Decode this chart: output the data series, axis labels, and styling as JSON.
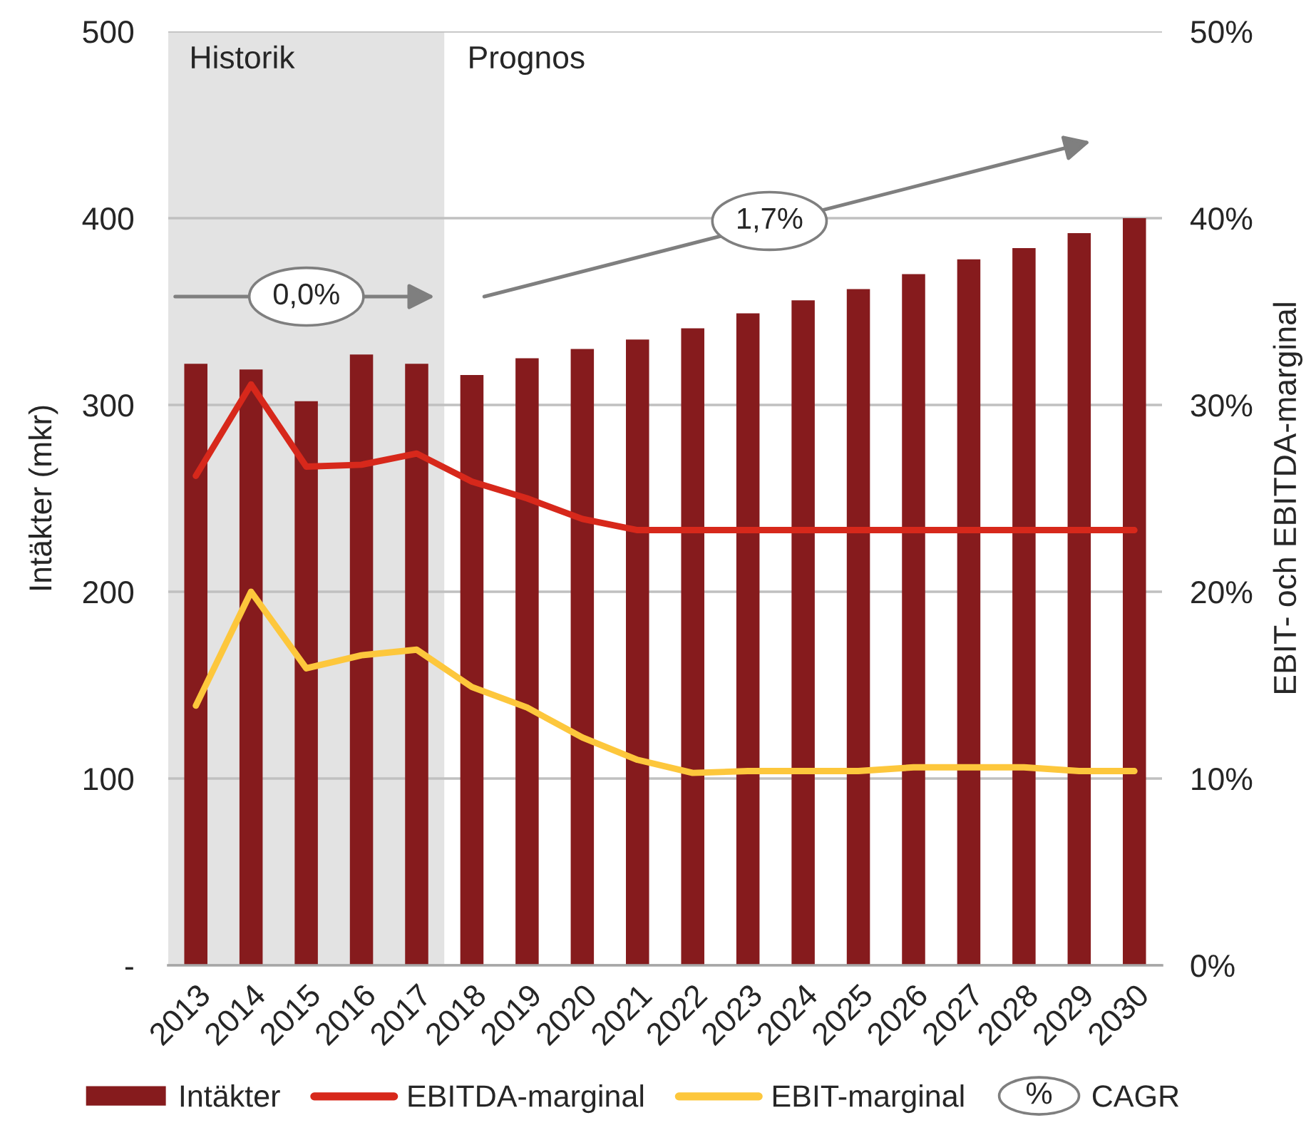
{
  "chart_data": {
    "type": "bar",
    "categories": [
      "2013",
      "2014",
      "2015",
      "2016",
      "2017",
      "2018",
      "2019",
      "2020",
      "2021",
      "2022",
      "2023",
      "2024",
      "2025",
      "2026",
      "2027",
      "2028",
      "2029",
      "2030"
    ],
    "series": [
      {
        "name": "Intäkter",
        "color": "#861b1d",
        "values": [
          322,
          319,
          302,
          327,
          322,
          316,
          325,
          330,
          335,
          341,
          349,
          356,
          362,
          370,
          378,
          384,
          392,
          400
        ]
      },
      {
        "name": "EBITDA-marginal",
        "type": "line",
        "axis": "y2",
        "color": "#d7281b",
        "values": [
          26.2,
          31.1,
          26.7,
          26.8,
          27.4,
          25.9,
          25.0,
          23.9,
          23.3,
          23.3,
          23.3,
          23.3,
          23.3,
          23.3,
          23.3,
          23.3,
          23.3,
          23.3
        ]
      },
      {
        "name": "EBIT-marginal",
        "type": "line",
        "axis": "y2",
        "color": "#fdc73c",
        "values": [
          13.9,
          20.0,
          15.9,
          16.6,
          16.9,
          14.9,
          13.8,
          12.2,
          11.0,
          10.3,
          10.4,
          10.4,
          10.4,
          10.6,
          10.6,
          10.6,
          10.4,
          10.4
        ]
      }
    ],
    "ylabel": "Intäkter (mkr)",
    "y2label": "EBIT- och EBITDA-marginal",
    "ylim": [
      0,
      500
    ],
    "yticks": [
      {
        "value": 0,
        "label": "-"
      },
      100,
      200,
      300,
      400,
      500
    ],
    "y2lim": [
      0,
      50
    ],
    "y2ticks": [
      {
        "value": 0,
        "label": "0%"
      },
      {
        "value": 10,
        "label": "10%"
      },
      {
        "value": 20,
        "label": "20%"
      },
      {
        "value": 30,
        "label": "30%"
      },
      {
        "value": 40,
        "label": "40%"
      },
      {
        "value": 50,
        "label": "50%"
      }
    ],
    "grid": "y",
    "legend": "bottom",
    "line_style": "solid",
    "bands": [
      {
        "axis": "x",
        "from": "2013",
        "to": "2017",
        "label": "Historik",
        "color": "#e3e3e3"
      }
    ],
    "annotations": [
      "Prognos",
      "0,0%",
      "1,7%",
      "%",
      "CAGR"
    ]
  }
}
